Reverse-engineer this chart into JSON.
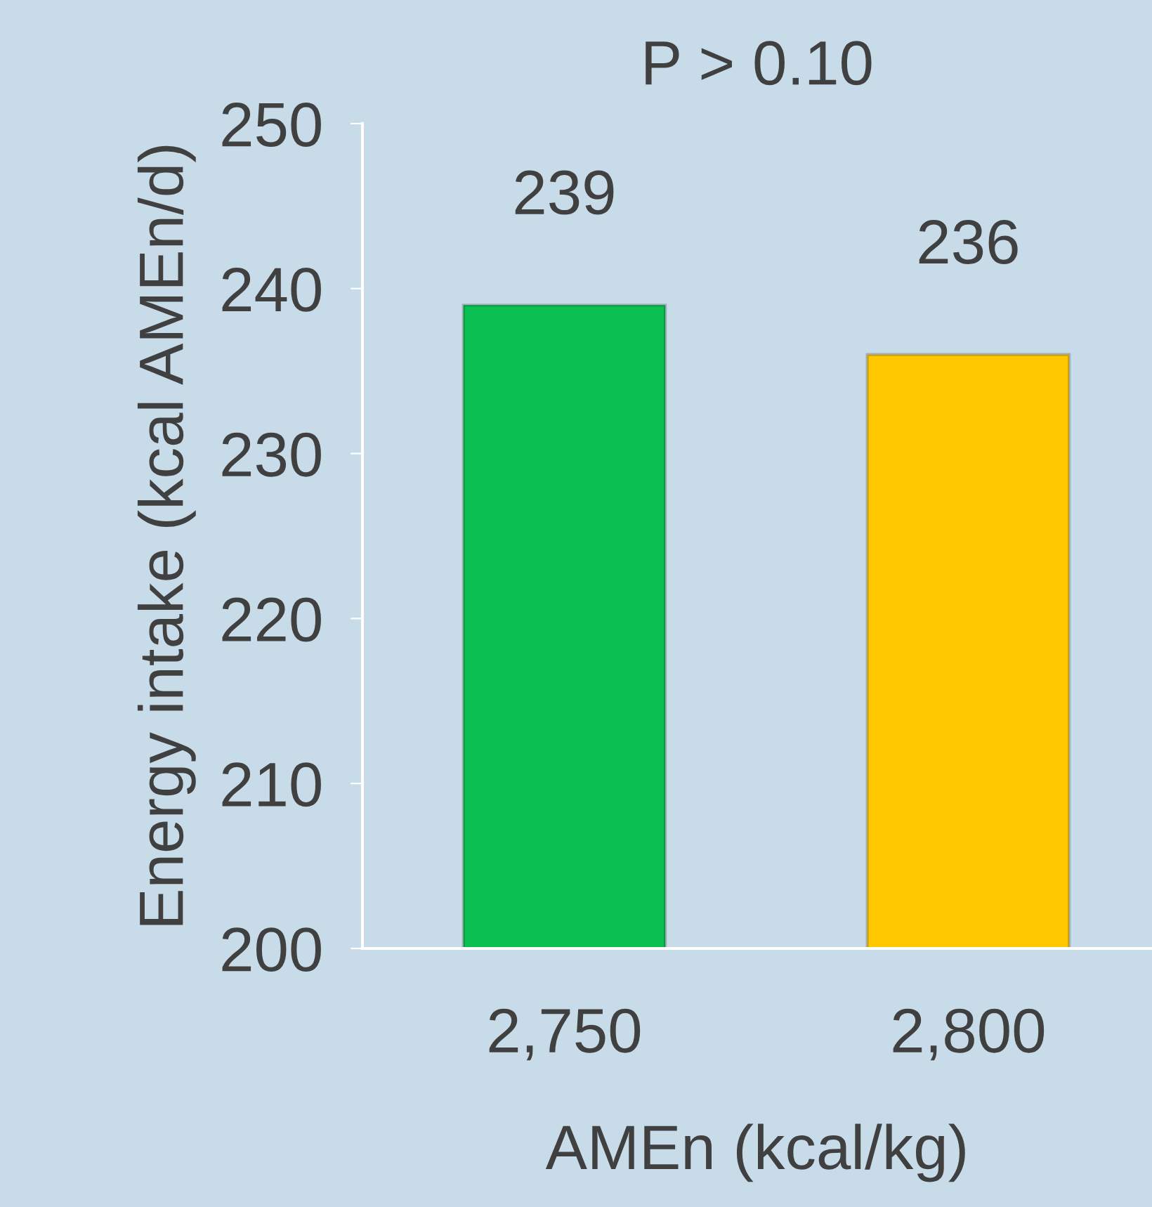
{
  "chart_data": {
    "type": "bar",
    "title": "P > 0.10",
    "xlabel": "AMEn (kcal/kg)",
    "ylabel": "Energy intake (kcal AMEn/d)",
    "categories": [
      "2,750",
      "2,800"
    ],
    "values": [
      239,
      236
    ],
    "colors": [
      "#0bbf52",
      "#ffc800"
    ],
    "ylim": [
      200,
      250
    ],
    "yticks": [
      200,
      210,
      220,
      230,
      240,
      250
    ],
    "data_labels": true,
    "grid": false,
    "legend": false
  }
}
